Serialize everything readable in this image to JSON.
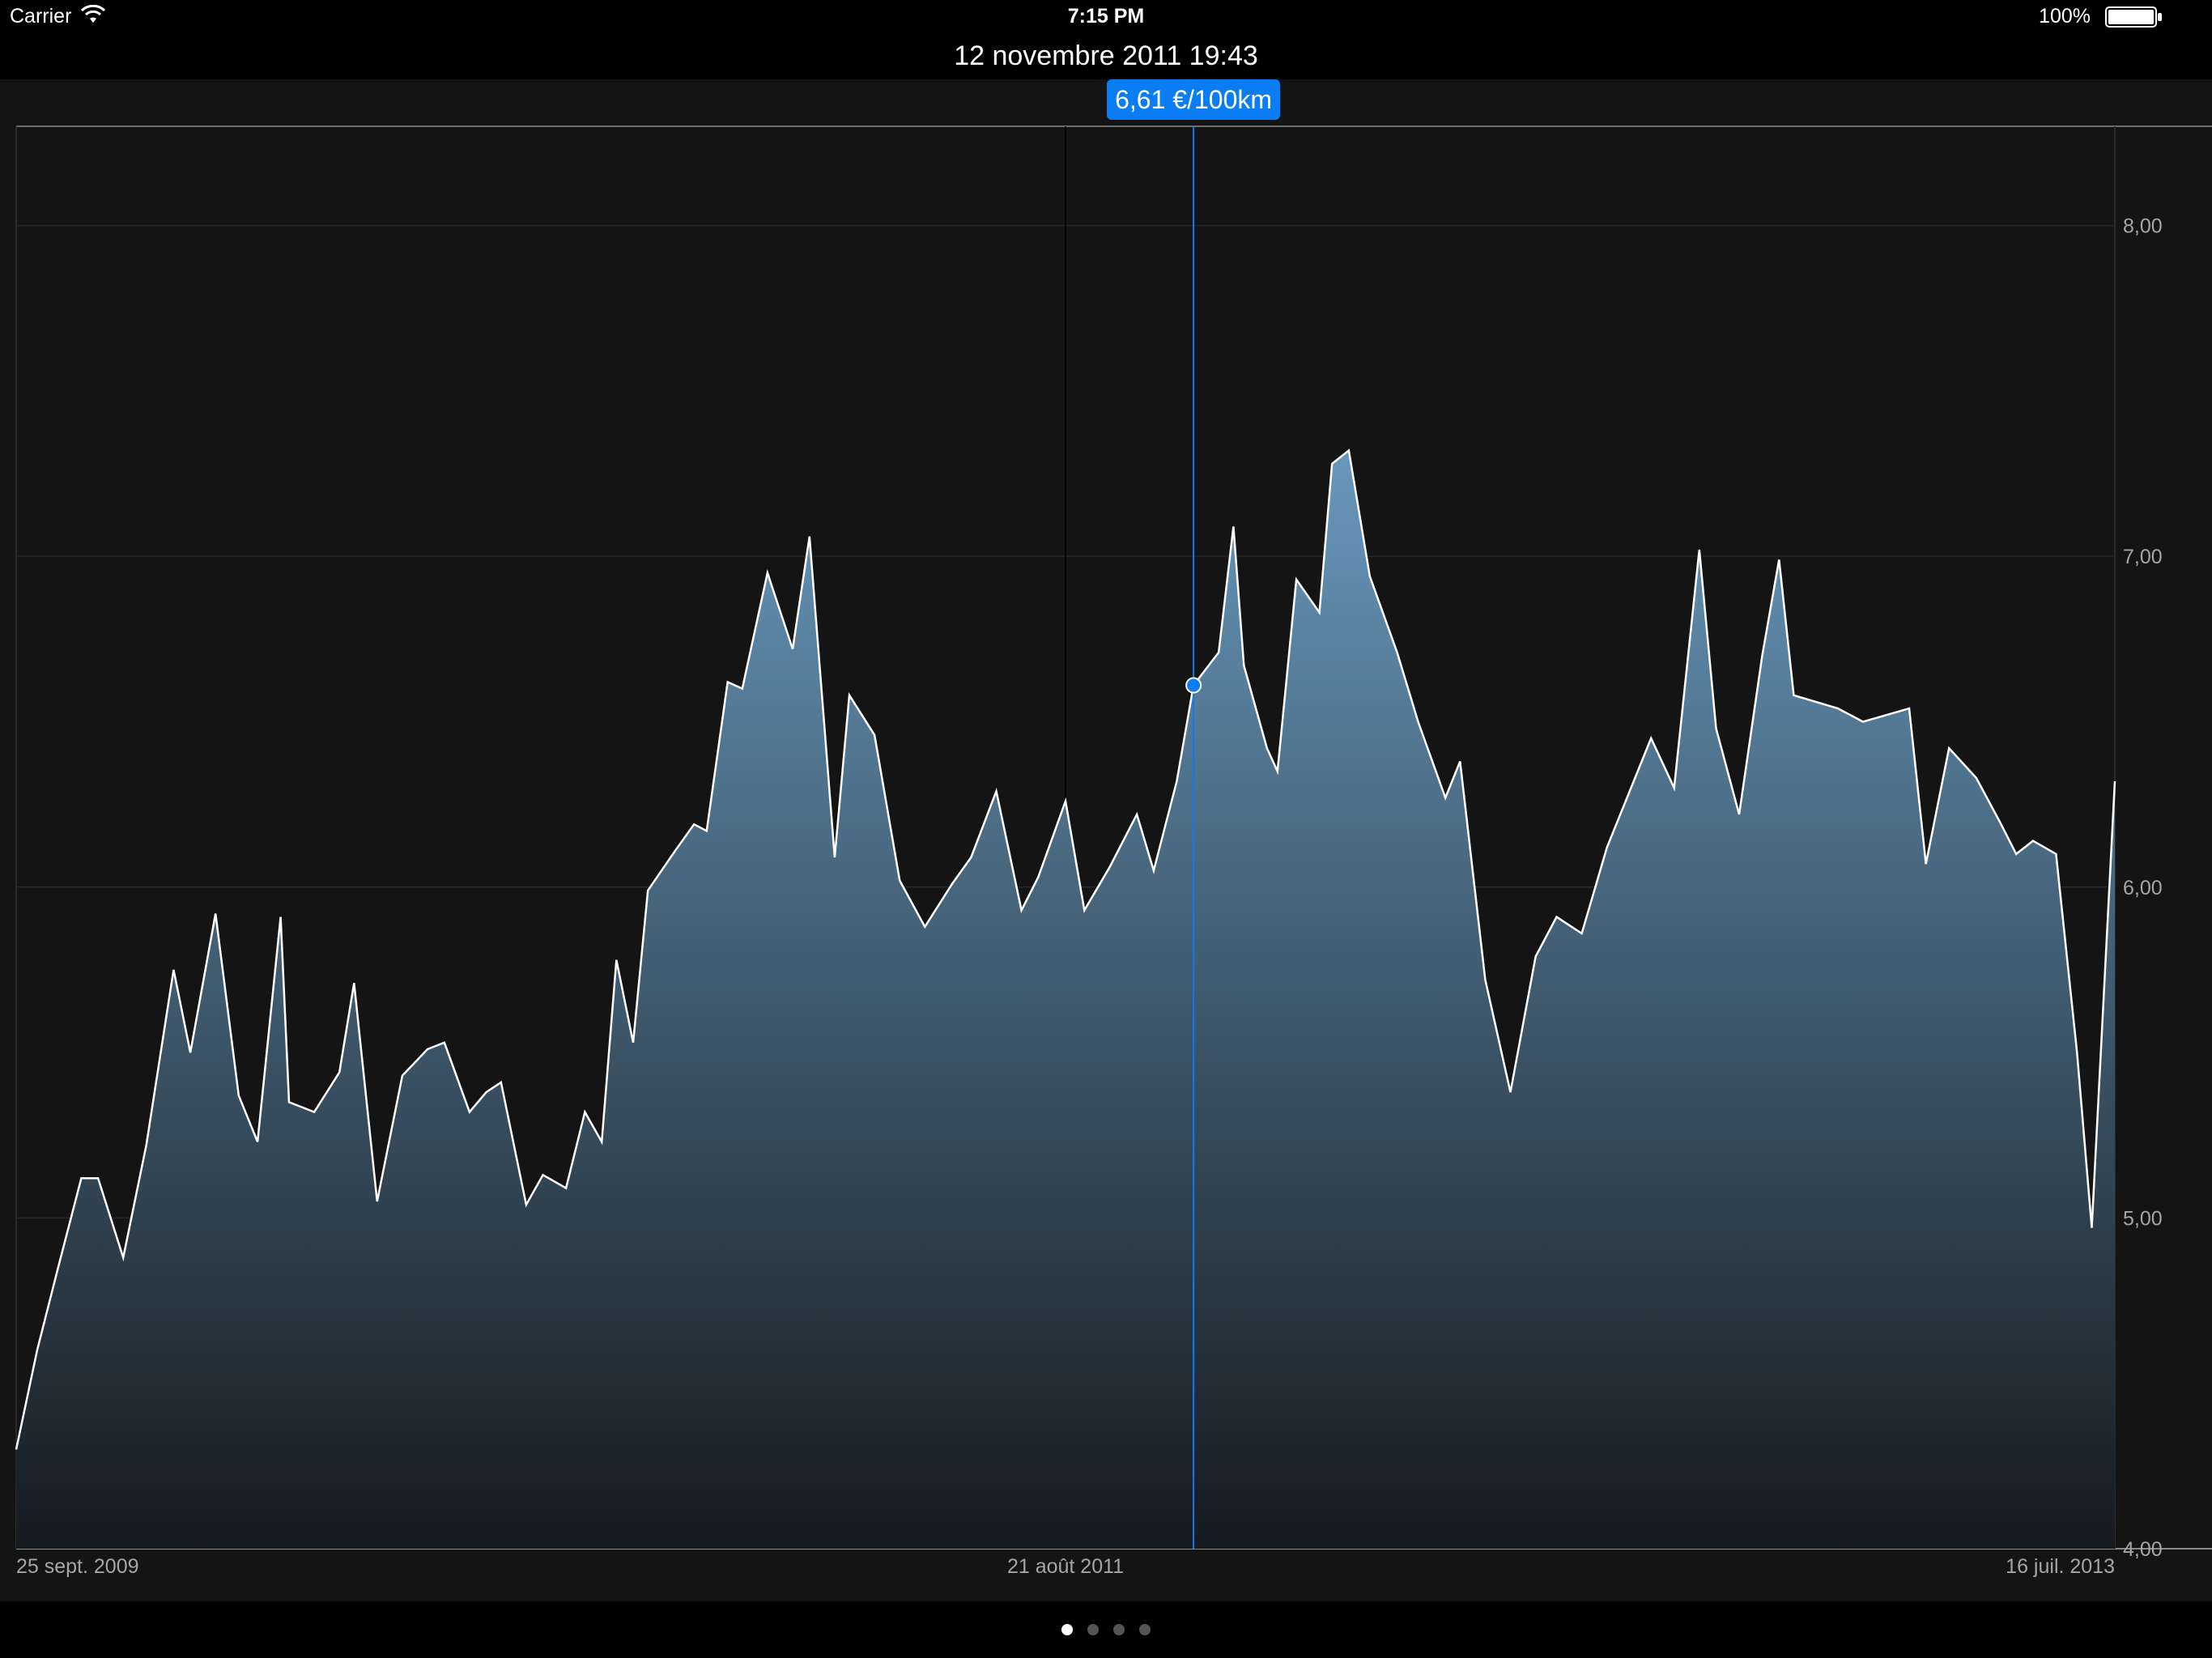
{
  "status_bar": {
    "carrier": "Carrier",
    "time": "7:15 PM",
    "battery": "100%"
  },
  "header": {
    "title": "12 novembre 2011 19:43"
  },
  "tooltip": {
    "value": "6,61 €/100km"
  },
  "pager": {
    "count": 4,
    "active": 0
  },
  "colors": {
    "line": "#ffffff",
    "fill_top": "#6a9bc0",
    "fill_bottom": "#161a1e",
    "accent": "#0a7cf4"
  },
  "chart_data": {
    "type": "area",
    "x_range": [
      0,
      100
    ],
    "ylim": [
      4.0,
      8.3
    ],
    "y_ticks": [
      {
        "value": 4.0,
        "label": "4,00"
      },
      {
        "value": 5.0,
        "label": "5,00"
      },
      {
        "value": 6.0,
        "label": "6,00"
      },
      {
        "value": 7.0,
        "label": "7,00"
      },
      {
        "value": 8.0,
        "label": "8,00"
      }
    ],
    "x_ticks": [
      {
        "x": 0,
        "label": "25 sept. 2009"
      },
      {
        "x": 50,
        "label": "21 août 2011"
      },
      {
        "x": 100,
        "label": "16 juil. 2013"
      }
    ],
    "selected": {
      "x": 56.1,
      "y": 6.61
    },
    "points": [
      [
        0.0,
        4.3
      ],
      [
        1.0,
        4.6
      ],
      [
        2.0,
        4.85
      ],
      [
        3.1,
        5.12
      ],
      [
        3.9,
        5.12
      ],
      [
        5.1,
        4.88
      ],
      [
        6.2,
        5.22
      ],
      [
        7.5,
        5.75
      ],
      [
        8.3,
        5.5
      ],
      [
        9.5,
        5.92
      ],
      [
        10.6,
        5.37
      ],
      [
        11.5,
        5.23
      ],
      [
        12.6,
        5.91
      ],
      [
        13.0,
        5.35
      ],
      [
        14.2,
        5.32
      ],
      [
        15.4,
        5.44
      ],
      [
        16.1,
        5.71
      ],
      [
        17.2,
        5.05
      ],
      [
        18.4,
        5.43
      ],
      [
        19.6,
        5.51
      ],
      [
        20.4,
        5.53
      ],
      [
        21.6,
        5.32
      ],
      [
        22.4,
        5.38
      ],
      [
        23.1,
        5.41
      ],
      [
        24.3,
        5.04
      ],
      [
        25.1,
        5.13
      ],
      [
        26.2,
        5.09
      ],
      [
        27.1,
        5.32
      ],
      [
        27.9,
        5.23
      ],
      [
        28.6,
        5.78
      ],
      [
        29.4,
        5.53
      ],
      [
        30.1,
        5.99
      ],
      [
        31.4,
        6.11
      ],
      [
        32.3,
        6.19
      ],
      [
        32.9,
        6.17
      ],
      [
        33.9,
        6.62
      ],
      [
        34.6,
        6.6
      ],
      [
        35.8,
        6.95
      ],
      [
        37.0,
        6.72
      ],
      [
        37.8,
        7.06
      ],
      [
        39.0,
        6.09
      ],
      [
        39.7,
        6.58
      ],
      [
        40.9,
        6.46
      ],
      [
        42.1,
        6.02
      ],
      [
        43.3,
        5.88
      ],
      [
        44.6,
        6.01
      ],
      [
        45.5,
        6.09
      ],
      [
        46.7,
        6.29
      ],
      [
        47.9,
        5.93
      ],
      [
        48.7,
        6.03
      ],
      [
        50.0,
        6.26
      ],
      [
        50.9,
        5.93
      ],
      [
        52.1,
        6.06
      ],
      [
        53.4,
        6.22
      ],
      [
        54.2,
        6.05
      ],
      [
        55.3,
        6.32
      ],
      [
        56.1,
        6.61
      ],
      [
        57.3,
        6.71
      ],
      [
        58.0,
        7.09
      ],
      [
        58.5,
        6.67
      ],
      [
        59.6,
        6.42
      ],
      [
        60.1,
        6.35
      ],
      [
        61.0,
        6.93
      ],
      [
        62.1,
        6.83
      ],
      [
        62.7,
        7.28
      ],
      [
        63.5,
        7.32
      ],
      [
        64.5,
        6.94
      ],
      [
        65.8,
        6.71
      ],
      [
        66.8,
        6.5
      ],
      [
        68.1,
        6.27
      ],
      [
        68.8,
        6.38
      ],
      [
        70.0,
        5.72
      ],
      [
        71.2,
        5.38
      ],
      [
        72.4,
        5.79
      ],
      [
        73.4,
        5.91
      ],
      [
        74.6,
        5.86
      ],
      [
        75.8,
        6.12
      ],
      [
        77.9,
        6.45
      ],
      [
        79.0,
        6.3
      ],
      [
        80.2,
        7.02
      ],
      [
        81.0,
        6.48
      ],
      [
        82.1,
        6.22
      ],
      [
        83.2,
        6.7
      ],
      [
        84.0,
        6.99
      ],
      [
        84.7,
        6.58
      ],
      [
        86.8,
        6.54
      ],
      [
        88.0,
        6.5
      ],
      [
        90.2,
        6.54
      ],
      [
        91.0,
        6.07
      ],
      [
        92.1,
        6.42
      ],
      [
        93.4,
        6.33
      ],
      [
        94.5,
        6.2
      ],
      [
        95.3,
        6.1
      ],
      [
        96.1,
        6.14
      ],
      [
        97.2,
        6.1
      ],
      [
        98.2,
        5.5
      ],
      [
        98.9,
        4.97
      ],
      [
        100.0,
        6.32
      ]
    ]
  }
}
